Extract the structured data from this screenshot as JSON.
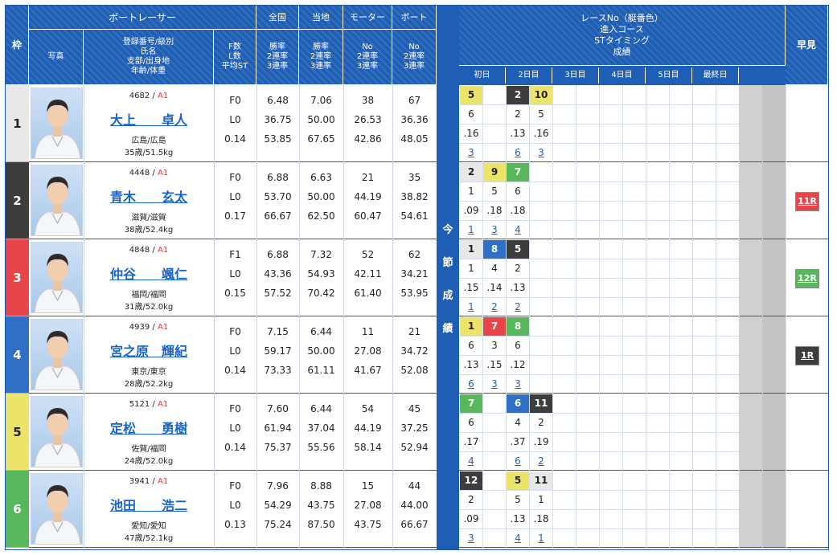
{
  "header": {
    "waku": "枠",
    "photo": "写真",
    "racer_group": "ボートレーサー",
    "racer_info": [
      "登録番号/級別",
      "氏名",
      "支部/出身地",
      "年齢/体重"
    ],
    "fl": [
      "F数",
      "L数",
      "平均ST"
    ],
    "zenkoku": "全国",
    "touchi": "当地",
    "motor": "モーター",
    "boat": "ボート",
    "rate_lines": [
      "勝率",
      "2連率",
      "3連率"
    ],
    "no_lines": [
      "No",
      "2連率",
      "3連率"
    ],
    "race_info": [
      "レースNo（艇番色）",
      "進入コース",
      "STタイミング",
      "成績"
    ],
    "hayami": "早見",
    "days": [
      "初日",
      "2日目",
      "3日目",
      "4日目",
      "5日目",
      "最終日"
    ],
    "konsetsu": [
      "今",
      "節",
      "成",
      "績"
    ]
  },
  "colors": {
    "waku": [
      "#e8e8e8",
      "#3d3d3d",
      "#e8454b",
      "#2f6fc6",
      "#ece46a",
      "#57b85b"
    ],
    "waku_text": [
      "#222222",
      "#ffffff",
      "#ffffff",
      "#ffffff",
      "#222222",
      "#ffffff"
    ],
    "header_blue": "#1e5eb4"
  },
  "racers": [
    {
      "waku": "1",
      "reg": "4682",
      "cls": "A1",
      "name": "大上　　卓人",
      "branch": "広島/広島",
      "age": "35歳/51.5kg",
      "f": "F0",
      "l": "L0",
      "st": "0.14",
      "zen": [
        "6.48",
        "36.75",
        "53.85"
      ],
      "tou": [
        "7.06",
        "50.00",
        "67.65"
      ],
      "motor": [
        "38",
        "26.53",
        "42.86"
      ],
      "boat": [
        "67",
        "36.36",
        "48.05"
      ],
      "races": [
        {
          "col": 0,
          "no": "5",
          "boat": 5,
          "course": "6",
          "st": ".16",
          "res": "3"
        },
        {
          "col": 2,
          "no": "2",
          "boat": 2,
          "course": "2",
          "st": ".13",
          "res": "6"
        },
        {
          "col": 3,
          "no": "10",
          "boat": 5,
          "course": "5",
          "st": ".16",
          "res": "3"
        }
      ],
      "hayami": ""
    },
    {
      "waku": "2",
      "reg": "4448",
      "cls": "A1",
      "name": "青木　　玄太",
      "branch": "滋賀/滋賀",
      "age": "38歳/52.4kg",
      "f": "F0",
      "l": "L0",
      "st": "0.17",
      "zen": [
        "6.88",
        "53.70",
        "66.67"
      ],
      "tou": [
        "6.63",
        "50.00",
        "62.50"
      ],
      "motor": [
        "21",
        "44.19",
        "60.47"
      ],
      "boat": [
        "35",
        "38.82",
        "54.61"
      ],
      "races": [
        {
          "col": 0,
          "no": "2",
          "boat": 1,
          "course": "1",
          "st": ".09",
          "res": "1"
        },
        {
          "col": 1,
          "no": "9",
          "boat": 5,
          "course": "5",
          "st": ".18",
          "res": "3"
        },
        {
          "col": 2,
          "no": "7",
          "boat": 6,
          "course": "6",
          "st": ".18",
          "res": "4"
        }
      ],
      "hayami": "11R",
      "hayami_color": "#e8454b"
    },
    {
      "waku": "3",
      "reg": "4848",
      "cls": "A1",
      "name": "仲谷　　颯仁",
      "branch": "福岡/福岡",
      "age": "31歳/52.0kg",
      "f": "F1",
      "l": "L0",
      "st": "0.15",
      "zen": [
        "6.88",
        "43.36",
        "57.52"
      ],
      "tou": [
        "7.32",
        "54.93",
        "70.42"
      ],
      "motor": [
        "52",
        "42.11",
        "61.40"
      ],
      "boat": [
        "62",
        "34.21",
        "53.95"
      ],
      "races": [
        {
          "col": 0,
          "no": "1",
          "boat": 1,
          "course": "1",
          "st": ".15",
          "res": "1"
        },
        {
          "col": 1,
          "no": "8",
          "boat": 4,
          "course": "4",
          "st": ".14",
          "res": "2"
        },
        {
          "col": 2,
          "no": "5",
          "boat": 2,
          "course": "2",
          "st": ".13",
          "res": "2"
        }
      ],
      "hayami": "12R",
      "hayami_color": "#57b85b"
    },
    {
      "waku": "4",
      "reg": "4939",
      "cls": "A1",
      "name": "宮之原　輝紀",
      "branch": "東京/東京",
      "age": "28歳/52.2kg",
      "f": "F0",
      "l": "L0",
      "st": "0.14",
      "zen": [
        "7.15",
        "59.17",
        "73.33"
      ],
      "tou": [
        "6.44",
        "50.00",
        "61.11"
      ],
      "motor": [
        "11",
        "27.08",
        "41.67"
      ],
      "boat": [
        "21",
        "34.72",
        "52.08"
      ],
      "races": [
        {
          "col": 0,
          "no": "1",
          "boat": 5,
          "course": "6",
          "st": ".13",
          "res": "6"
        },
        {
          "col": 1,
          "no": "7",
          "boat": 3,
          "course": "3",
          "st": ".15",
          "res": "3"
        },
        {
          "col": 2,
          "no": "8",
          "boat": 6,
          "course": "6",
          "st": ".12",
          "res": "3"
        }
      ],
      "hayami": "1R",
      "hayami_color": "#3d3d3d"
    },
    {
      "waku": "5",
      "reg": "5121",
      "cls": "A1",
      "name": "定松　　勇樹",
      "branch": "佐賀/福岡",
      "age": "24歳/52.0kg",
      "f": "F0",
      "l": "L0",
      "st": "0.14",
      "zen": [
        "7.60",
        "61.94",
        "75.37"
      ],
      "tou": [
        "6.44",
        "37.04",
        "55.56"
      ],
      "motor": [
        "54",
        "44.19",
        "58.14"
      ],
      "boat": [
        "45",
        "37.25",
        "52.94"
      ],
      "races": [
        {
          "col": 0,
          "no": "7",
          "boat": 6,
          "course": "6",
          "st": ".17",
          "res": "4"
        },
        {
          "col": 2,
          "no": "6",
          "boat": 4,
          "course": "4",
          "st": ".37",
          "res": "6"
        },
        {
          "col": 3,
          "no": "11",
          "boat": 2,
          "course": "2",
          "st": ".19",
          "res": "2"
        }
      ],
      "hayami": ""
    },
    {
      "waku": "6",
      "reg": "3941",
      "cls": "A1",
      "name": "池田　　浩二",
      "branch": "愛知/愛知",
      "age": "47歳/52.1kg",
      "f": "F0",
      "l": "L0",
      "st": "0.13",
      "zen": [
        "7.96",
        "54.29",
        "75.24"
      ],
      "tou": [
        "8.88",
        "43.75",
        "87.50"
      ],
      "motor": [
        "15",
        "27.08",
        "43.75"
      ],
      "boat": [
        "44",
        "44.00",
        "66.67"
      ],
      "races": [
        {
          "col": 0,
          "no": "12",
          "boat": 2,
          "course": "2",
          "st": ".09",
          "res": "3"
        },
        {
          "col": 2,
          "no": "5",
          "boat": 5,
          "course": "5",
          "st": ".13",
          "res": "4"
        },
        {
          "col": 3,
          "no": "11",
          "boat": 1,
          "course": "1",
          "st": ".18",
          "res": "1"
        }
      ],
      "hayami": ""
    }
  ]
}
